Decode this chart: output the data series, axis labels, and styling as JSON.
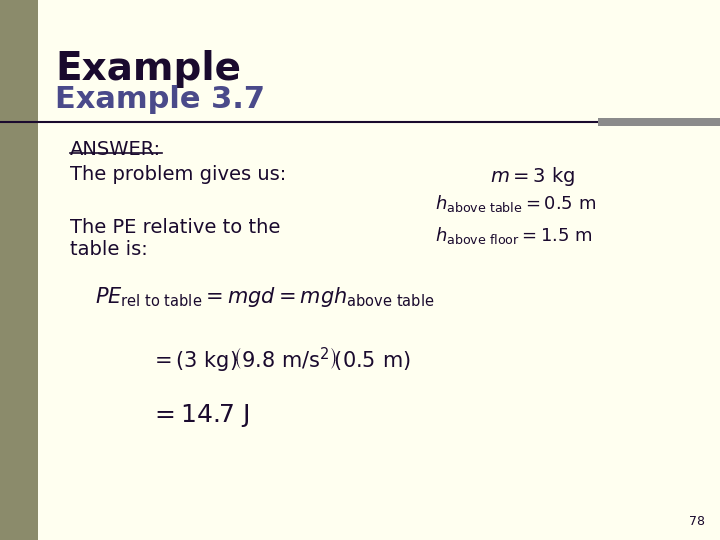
{
  "bg_color": "#FFFFF0",
  "left_bar_color": "#8B8B6B",
  "title_line1": "Example",
  "title_line2": "Example 3.7",
  "title_color": "#1a0a2e",
  "title2_color": "#4a4a8a",
  "separator_line_color": "#1a0a2e",
  "separator_accent_color": "#8B8B8B",
  "answer_text": "ANSWER:",
  "problem_text": "The problem gives us:",
  "pe_text_line1": "The PE relative to the",
  "pe_text_line2": "table is:",
  "page_number": "78",
  "text_color": "#1a0a2e"
}
